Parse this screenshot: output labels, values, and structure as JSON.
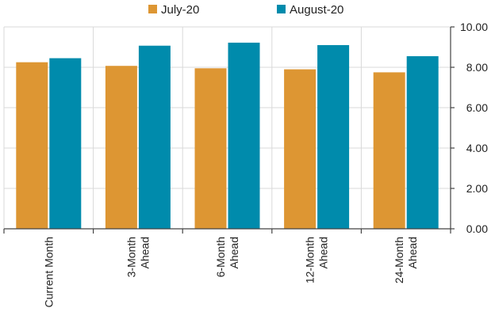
{
  "chart_data": {
    "type": "bar",
    "categories": [
      [
        "Current Month"
      ],
      [
        "3-Month",
        "Ahead"
      ],
      [
        "6-Month",
        "Ahead"
      ],
      [
        "12-Month",
        "Ahead"
      ],
      [
        "24-Month",
        "Ahead"
      ]
    ],
    "series": [
      {
        "name": "July-20",
        "color": "#dd9633",
        "values": [
          8.25,
          8.07,
          7.95,
          7.9,
          7.75
        ]
      },
      {
        "name": "August-20",
        "color": "#008bac",
        "values": [
          8.45,
          9.07,
          9.22,
          9.1,
          8.55
        ]
      }
    ],
    "title": "",
    "xlabel": "",
    "ylabel": "",
    "ylim": [
      0,
      10
    ],
    "yticks": [
      "0.00",
      "2.00",
      "4.00",
      "6.00",
      "8.00",
      "10.00"
    ],
    "y_axis_side": "right",
    "grid": true,
    "legend_position": "top-center"
  }
}
